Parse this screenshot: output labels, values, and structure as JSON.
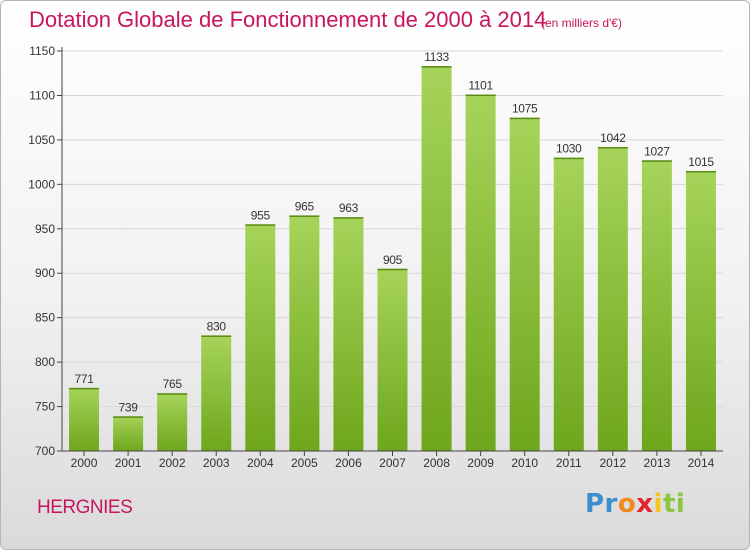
{
  "header": {
    "title": "Dotation Globale de Fonctionnement de 2000 à 2014",
    "subtitle": "(en milliers d'€)"
  },
  "footer": {
    "commune": "HERGNIES",
    "logo": [
      "Pr",
      "o",
      "x",
      "i",
      "ti"
    ]
  },
  "colors": {
    "title": "#c8155e",
    "bar_light": "#a6d45a",
    "bar_dark": "#6ea61c",
    "axis": "#444444"
  },
  "chart_data": {
    "type": "bar",
    "title": "Dotation Globale de Fonctionnement de 2000 à 2014",
    "subtitle": "(en milliers d'€)",
    "categories": [
      "2000",
      "2001",
      "2002",
      "2003",
      "2004",
      "2005",
      "2006",
      "2007",
      "2008",
      "2009",
      "2010",
      "2011",
      "2012",
      "2013",
      "2014"
    ],
    "values": [
      771,
      739,
      765,
      830,
      955,
      965,
      963,
      905,
      1133,
      1101,
      1075,
      1030,
      1042,
      1027,
      1015
    ],
    "ylim": [
      700,
      1150
    ],
    "yticks": [
      700,
      750,
      800,
      850,
      900,
      950,
      1000,
      1050,
      1100,
      1150
    ],
    "grid": true,
    "legend": "none"
  }
}
